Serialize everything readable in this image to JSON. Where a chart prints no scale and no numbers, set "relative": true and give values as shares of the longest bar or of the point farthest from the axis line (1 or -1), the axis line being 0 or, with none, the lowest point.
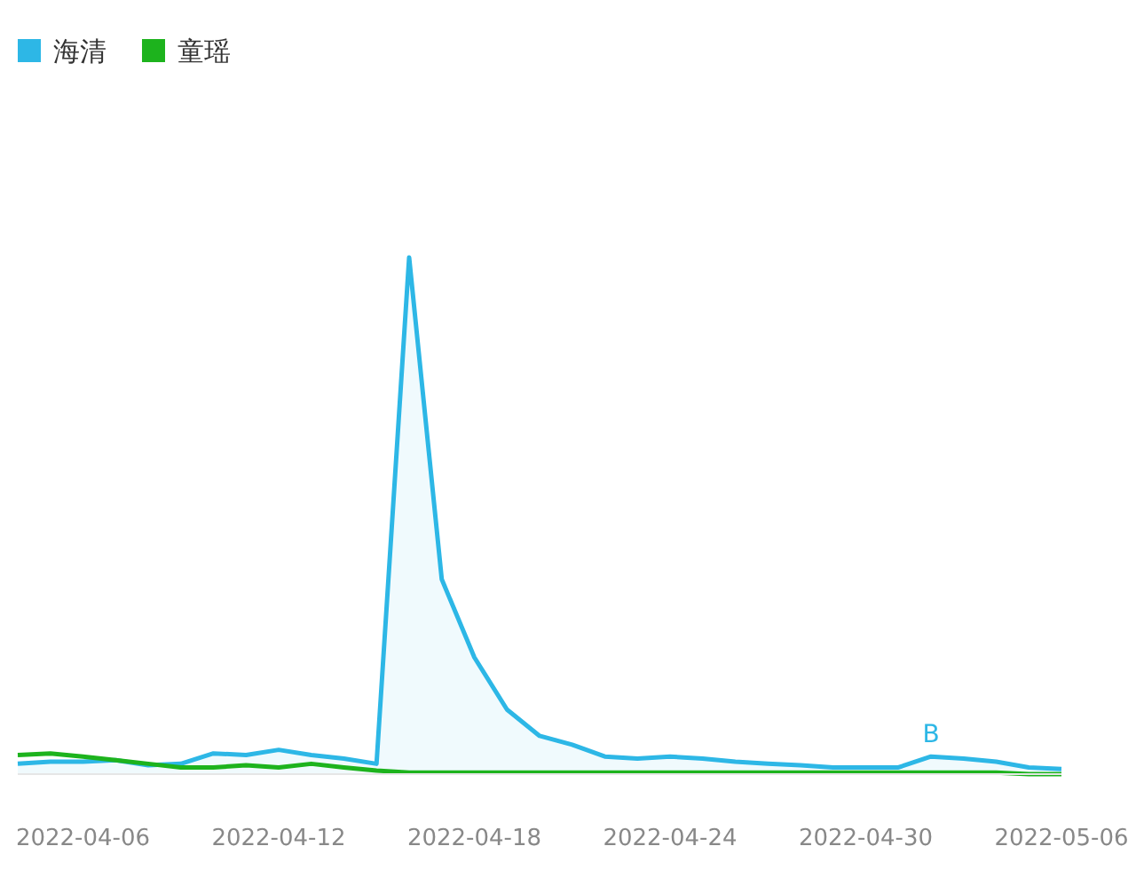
{
  "chart_data": {
    "type": "line",
    "relative": true,
    "legend": "top left",
    "x": [
      "2022-04-04",
      "2022-04-05",
      "2022-04-06",
      "2022-04-07",
      "2022-04-08",
      "2022-04-09",
      "2022-04-10",
      "2022-04-11",
      "2022-04-12",
      "2022-04-13",
      "2022-04-14",
      "2022-04-15",
      "2022-04-16",
      "2022-04-17",
      "2022-04-18",
      "2022-04-19",
      "2022-04-20",
      "2022-04-21",
      "2022-04-22",
      "2022-04-23",
      "2022-04-24",
      "2022-04-25",
      "2022-04-26",
      "2022-04-27",
      "2022-04-28",
      "2022-04-29",
      "2022-04-30",
      "2022-05-01",
      "2022-05-02",
      "2022-05-03",
      "2022-05-04",
      "2022-05-05",
      "2022-05-06"
    ],
    "xlim": [
      "2022-04-04",
      "2022-05-06"
    ],
    "xticks": [
      "2022-04-06",
      "2022-04-12",
      "2022-04-18",
      "2022-04-24",
      "2022-04-30",
      "2022-05-06"
    ],
    "series": [
      {
        "name": "海清",
        "type": "area",
        "color": "#2db7e6",
        "values": [
          0.02,
          0.024,
          0.024,
          0.027,
          0.017,
          0.02,
          0.04,
          0.037,
          0.047,
          0.037,
          0.03,
          0.02,
          1,
          0.377,
          0.226,
          0.125,
          0.074,
          0.057,
          0.034,
          0.03,
          0.034,
          0.03,
          0.024,
          0.02,
          0.017,
          0.013,
          0.013,
          0.013,
          0.034,
          0.03,
          0.024,
          0.013,
          0.01
        ]
      },
      {
        "name": "童瑶",
        "color": "#1db31d",
        "values": [
          0.037,
          0.04,
          0.034,
          0.027,
          0.02,
          0.013,
          0.013,
          0.017,
          0.013,
          0.02,
          0.013,
          0.007,
          0.003,
          0.003,
          0.003,
          0.003,
          0.003,
          0.003,
          0.003,
          0.003,
          0.003,
          0.003,
          0.003,
          0.003,
          0.003,
          0.003,
          0.003,
          0.003,
          0.003,
          0.003,
          0.003,
          0,
          0
        ]
      }
    ],
    "annotations": [
      {
        "text": "B",
        "x": "2022-05-02",
        "y": 0.034
      }
    ]
  }
}
